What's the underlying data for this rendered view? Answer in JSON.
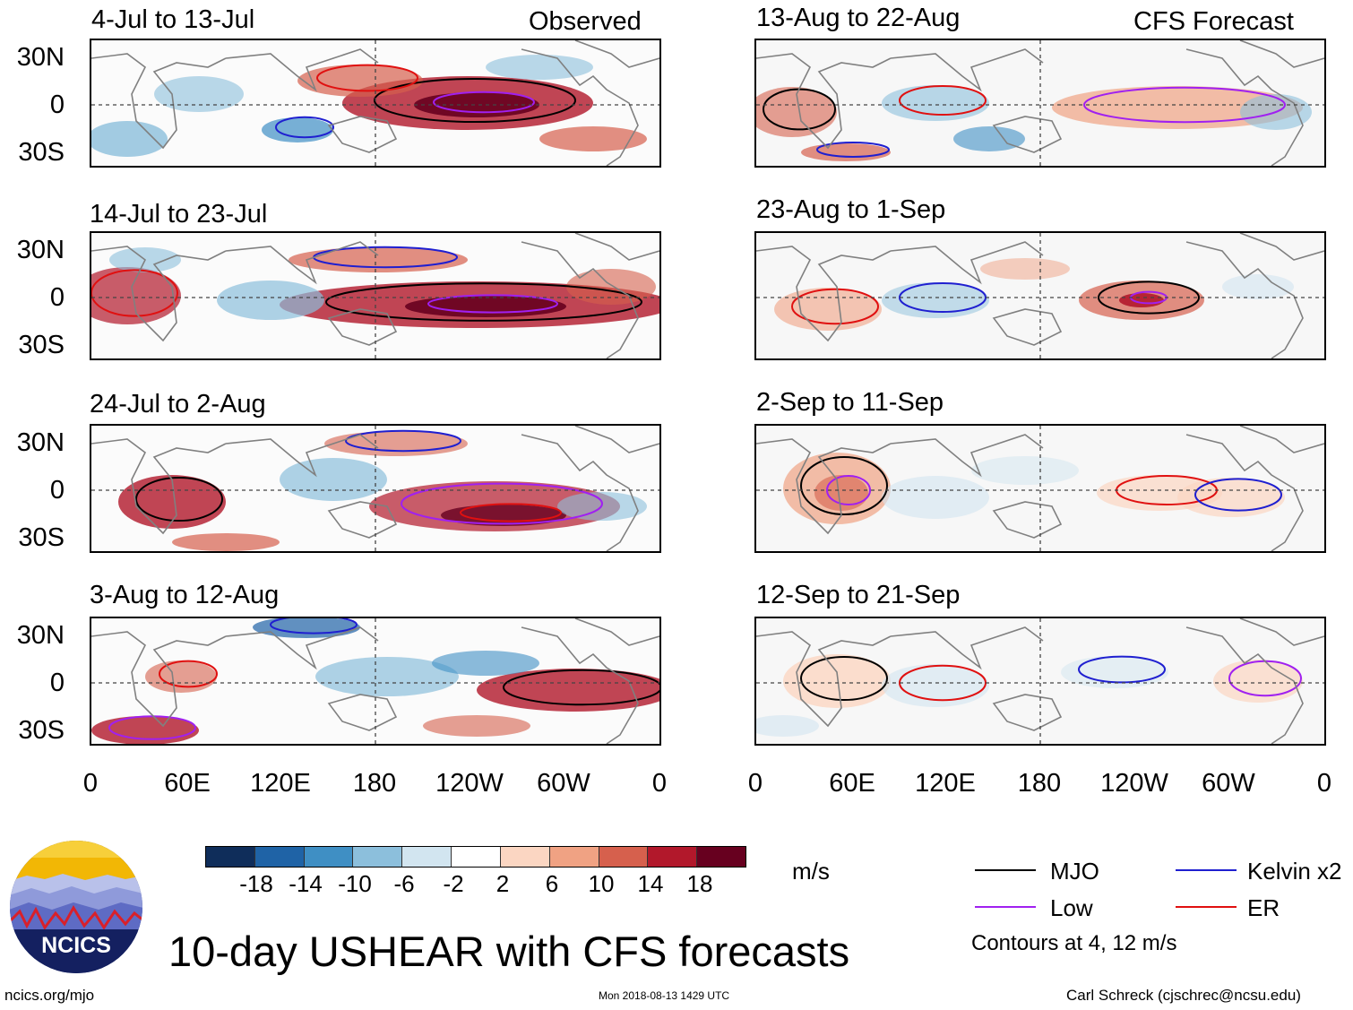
{
  "title": "10-day USHEAR with CFS forecasts",
  "observed_label": "Observed",
  "forecast_label": "CFS Forecast",
  "panels_left": [
    {
      "period": "4-Jul to 13-Jul",
      "source": "Observed"
    },
    {
      "period": "14-Jul to 23-Jul",
      "source": "Observed"
    },
    {
      "period": "24-Jul to 2-Aug",
      "source": "Observed"
    },
    {
      "period": "3-Aug to 12-Aug",
      "source": "Observed"
    }
  ],
  "panels_right": [
    {
      "period": "13-Aug to 22-Aug",
      "source": "CFS Forecast"
    },
    {
      "period": "23-Aug to 1-Sep",
      "source": "CFS Forecast"
    },
    {
      "period": "2-Sep to 11-Sep",
      "source": "CFS Forecast"
    },
    {
      "period": "12-Sep to 21-Sep",
      "source": "CFS Forecast"
    }
  ],
  "lat_labels": [
    "30N",
    "0",
    "30S"
  ],
  "lon_labels": [
    "0",
    "60E",
    "120E",
    "180",
    "120W",
    "60W",
    "0"
  ],
  "colorbar": {
    "unit": "m/s",
    "labels": [
      "-18",
      "-14",
      "-10",
      "-6",
      "-2",
      "2",
      "6",
      "10",
      "14",
      "18"
    ],
    "colors": [
      "#0f2d5a",
      "#1f63a6",
      "#3f8fc4",
      "#8cbfdc",
      "#d2e5f0",
      "#ffffff",
      "#fbd6c2",
      "#f0a283",
      "#d6604d",
      "#b2182b",
      "#67001f"
    ]
  },
  "legend": {
    "items": [
      {
        "name": "MJO",
        "color": "#000000"
      },
      {
        "name": "Kelvin x2",
        "color": "#1f1fd0"
      },
      {
        "name": "Low",
        "color": "#a020f0"
      },
      {
        "name": "ER",
        "color": "#e01010"
      }
    ],
    "note": "Contours at 4, 12 m/s"
  },
  "logo_text": "NCICS",
  "footer": {
    "url": "ncics.org/mjo",
    "timestamp": "Mon 2018-08-13 1429 UTC",
    "author": "Carl Schreck (cjschrec@ncsu.edu)"
  }
}
